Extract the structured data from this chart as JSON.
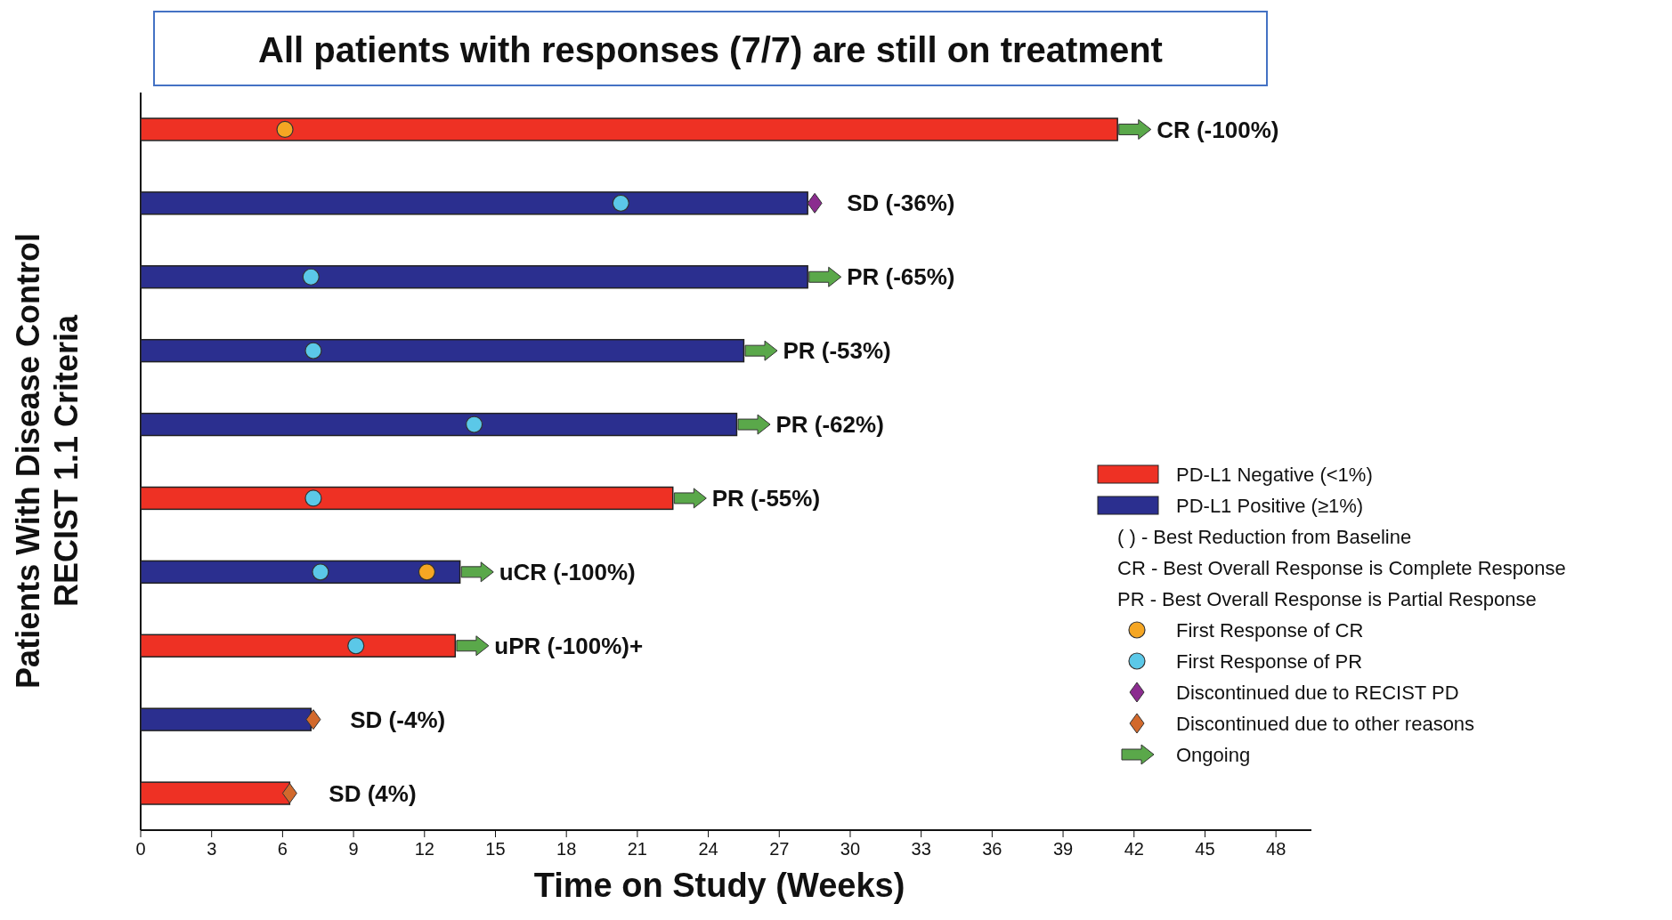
{
  "chart_data": {
    "type": "bar",
    "orientation": "horizontal",
    "stacked": true,
    "title": "All patients with responses (7/7) are still on treatment",
    "xlabel": "Time on Study (Weeks)",
    "ylabel": "Patients With Disease Control\nRECIST 1.1 Criteria",
    "categories": [
      null,
      null,
      null,
      null,
      null,
      null,
      null,
      null,
      null,
      null
    ],
    "xlim": [
      0,
      49.5
    ],
    "xticks": [
      0,
      3,
      6,
      9,
      12,
      15,
      18,
      21,
      24,
      27,
      30,
      33,
      36,
      39,
      42,
      45,
      48
    ],
    "tick_labels": "x",
    "legend": "right",
    "annotations": [
      "( ) - Best Reduction from Baseline",
      "CR - Best Overall Response is Complete Response",
      "PR - Best Overall Response is Partial Response",
      {
        "text": "CR (-100%)",
        "x": 41.3
      },
      {
        "text": "SD (-36%)",
        "x": 28.2
      },
      {
        "text": "PR (-65%)",
        "x": 28.2
      },
      {
        "text": "PR (-53%)",
        "x": 25.5
      },
      {
        "text": "PR (-62%)",
        "x": 25.2
      },
      {
        "text": "PR (-55%)",
        "x": 22.5
      },
      {
        "text": "uCR (-100%)",
        "x": 13.5
      },
      {
        "text": "uPR (-100%)+",
        "x": 13.3
      },
      {
        "text": "SD (-4%)",
        "x": 7.2
      },
      {
        "text": "SD (4%)",
        "x": 6.3
      }
    ],
    "series": [
      {
        "name": "PD-L1 Negative (<1%)",
        "color": "#ee3124",
        "values": [
          41.3,
          null,
          null,
          null,
          null,
          22.5,
          null,
          13.3,
          null,
          6.3
        ]
      },
      {
        "name": "PD-L1 Positive (≥1%)",
        "color": "#2b2f8f",
        "values": [
          null,
          28.2,
          28.2,
          25.5,
          25.2,
          null,
          13.5,
          null,
          7.2,
          null
        ]
      },
      {
        "name": "First Response of CR",
        "type": "scatter",
        "marker": "circle",
        "color": "#f5a623",
        "values": [
          6.1,
          null,
          null,
          null,
          null,
          null,
          12.1,
          null,
          null,
          null
        ]
      },
      {
        "name": "First Response of PR",
        "type": "scatter",
        "marker": "circle",
        "color": "#5bc8e8",
        "values": [
          null,
          20.3,
          7.2,
          7.3,
          14.1,
          7.3,
          7.6,
          9.1,
          null,
          null
        ]
      },
      {
        "name": "Discontinued due to RECIST PD",
        "type": "scatter",
        "marker": "diamond",
        "color": "#8b2c8f",
        "values": [
          null,
          28.5,
          null,
          null,
          null,
          null,
          null,
          null,
          null,
          null
        ]
      },
      {
        "name": "Discontinued due to other reasons",
        "type": "scatter",
        "marker": "diamond",
        "color": "#d2692c",
        "values": [
          null,
          null,
          null,
          null,
          null,
          null,
          null,
          null,
          7.3,
          6.3
        ]
      },
      {
        "name": "Ongoing",
        "type": "scatter",
        "color": "#5aa84a",
        "values": [
          42.0,
          null,
          28.9,
          26.2,
          25.9,
          23.2,
          14.2,
          14.0,
          null,
          null
        ]
      }
    ]
  }
}
